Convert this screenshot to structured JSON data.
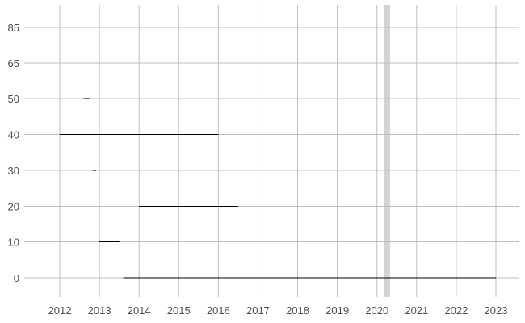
{
  "chart_data": {
    "type": "timeline",
    "x_ticks": [
      "2012",
      "2013",
      "2014",
      "2015",
      "2016",
      "2017",
      "2018",
      "2019",
      "2020",
      "2021",
      "2022",
      "2023"
    ],
    "y_ticks": [
      "0",
      "10",
      "20",
      "30",
      "40",
      "50",
      "65",
      "85"
    ],
    "xlim": [
      2011.45,
      2023.6
    ],
    "y_categories": [
      "0",
      "10",
      "20",
      "30",
      "40",
      "50",
      "65",
      "85"
    ],
    "grid": true,
    "shaded_band": {
      "x_start": 2020.17,
      "x_end": 2020.33,
      "color": "#d3d3d3"
    },
    "segments": [
      {
        "y": "50",
        "x_start": 2012.6,
        "x_end": 2012.75
      },
      {
        "y": "40",
        "x_start": 2012.0,
        "x_end": 2016.0
      },
      {
        "y": "30",
        "x_start": 2012.83,
        "x_end": 2012.92
      },
      {
        "y": "20",
        "x_start": 2014.0,
        "x_end": 2016.5
      },
      {
        "y": "10",
        "x_start": 2013.0,
        "x_end": 2013.5
      },
      {
        "y": "0",
        "x_start": 2013.6,
        "x_end": 2023.0
      }
    ],
    "line_color": "#000000",
    "grid_color": "#bebebe"
  }
}
